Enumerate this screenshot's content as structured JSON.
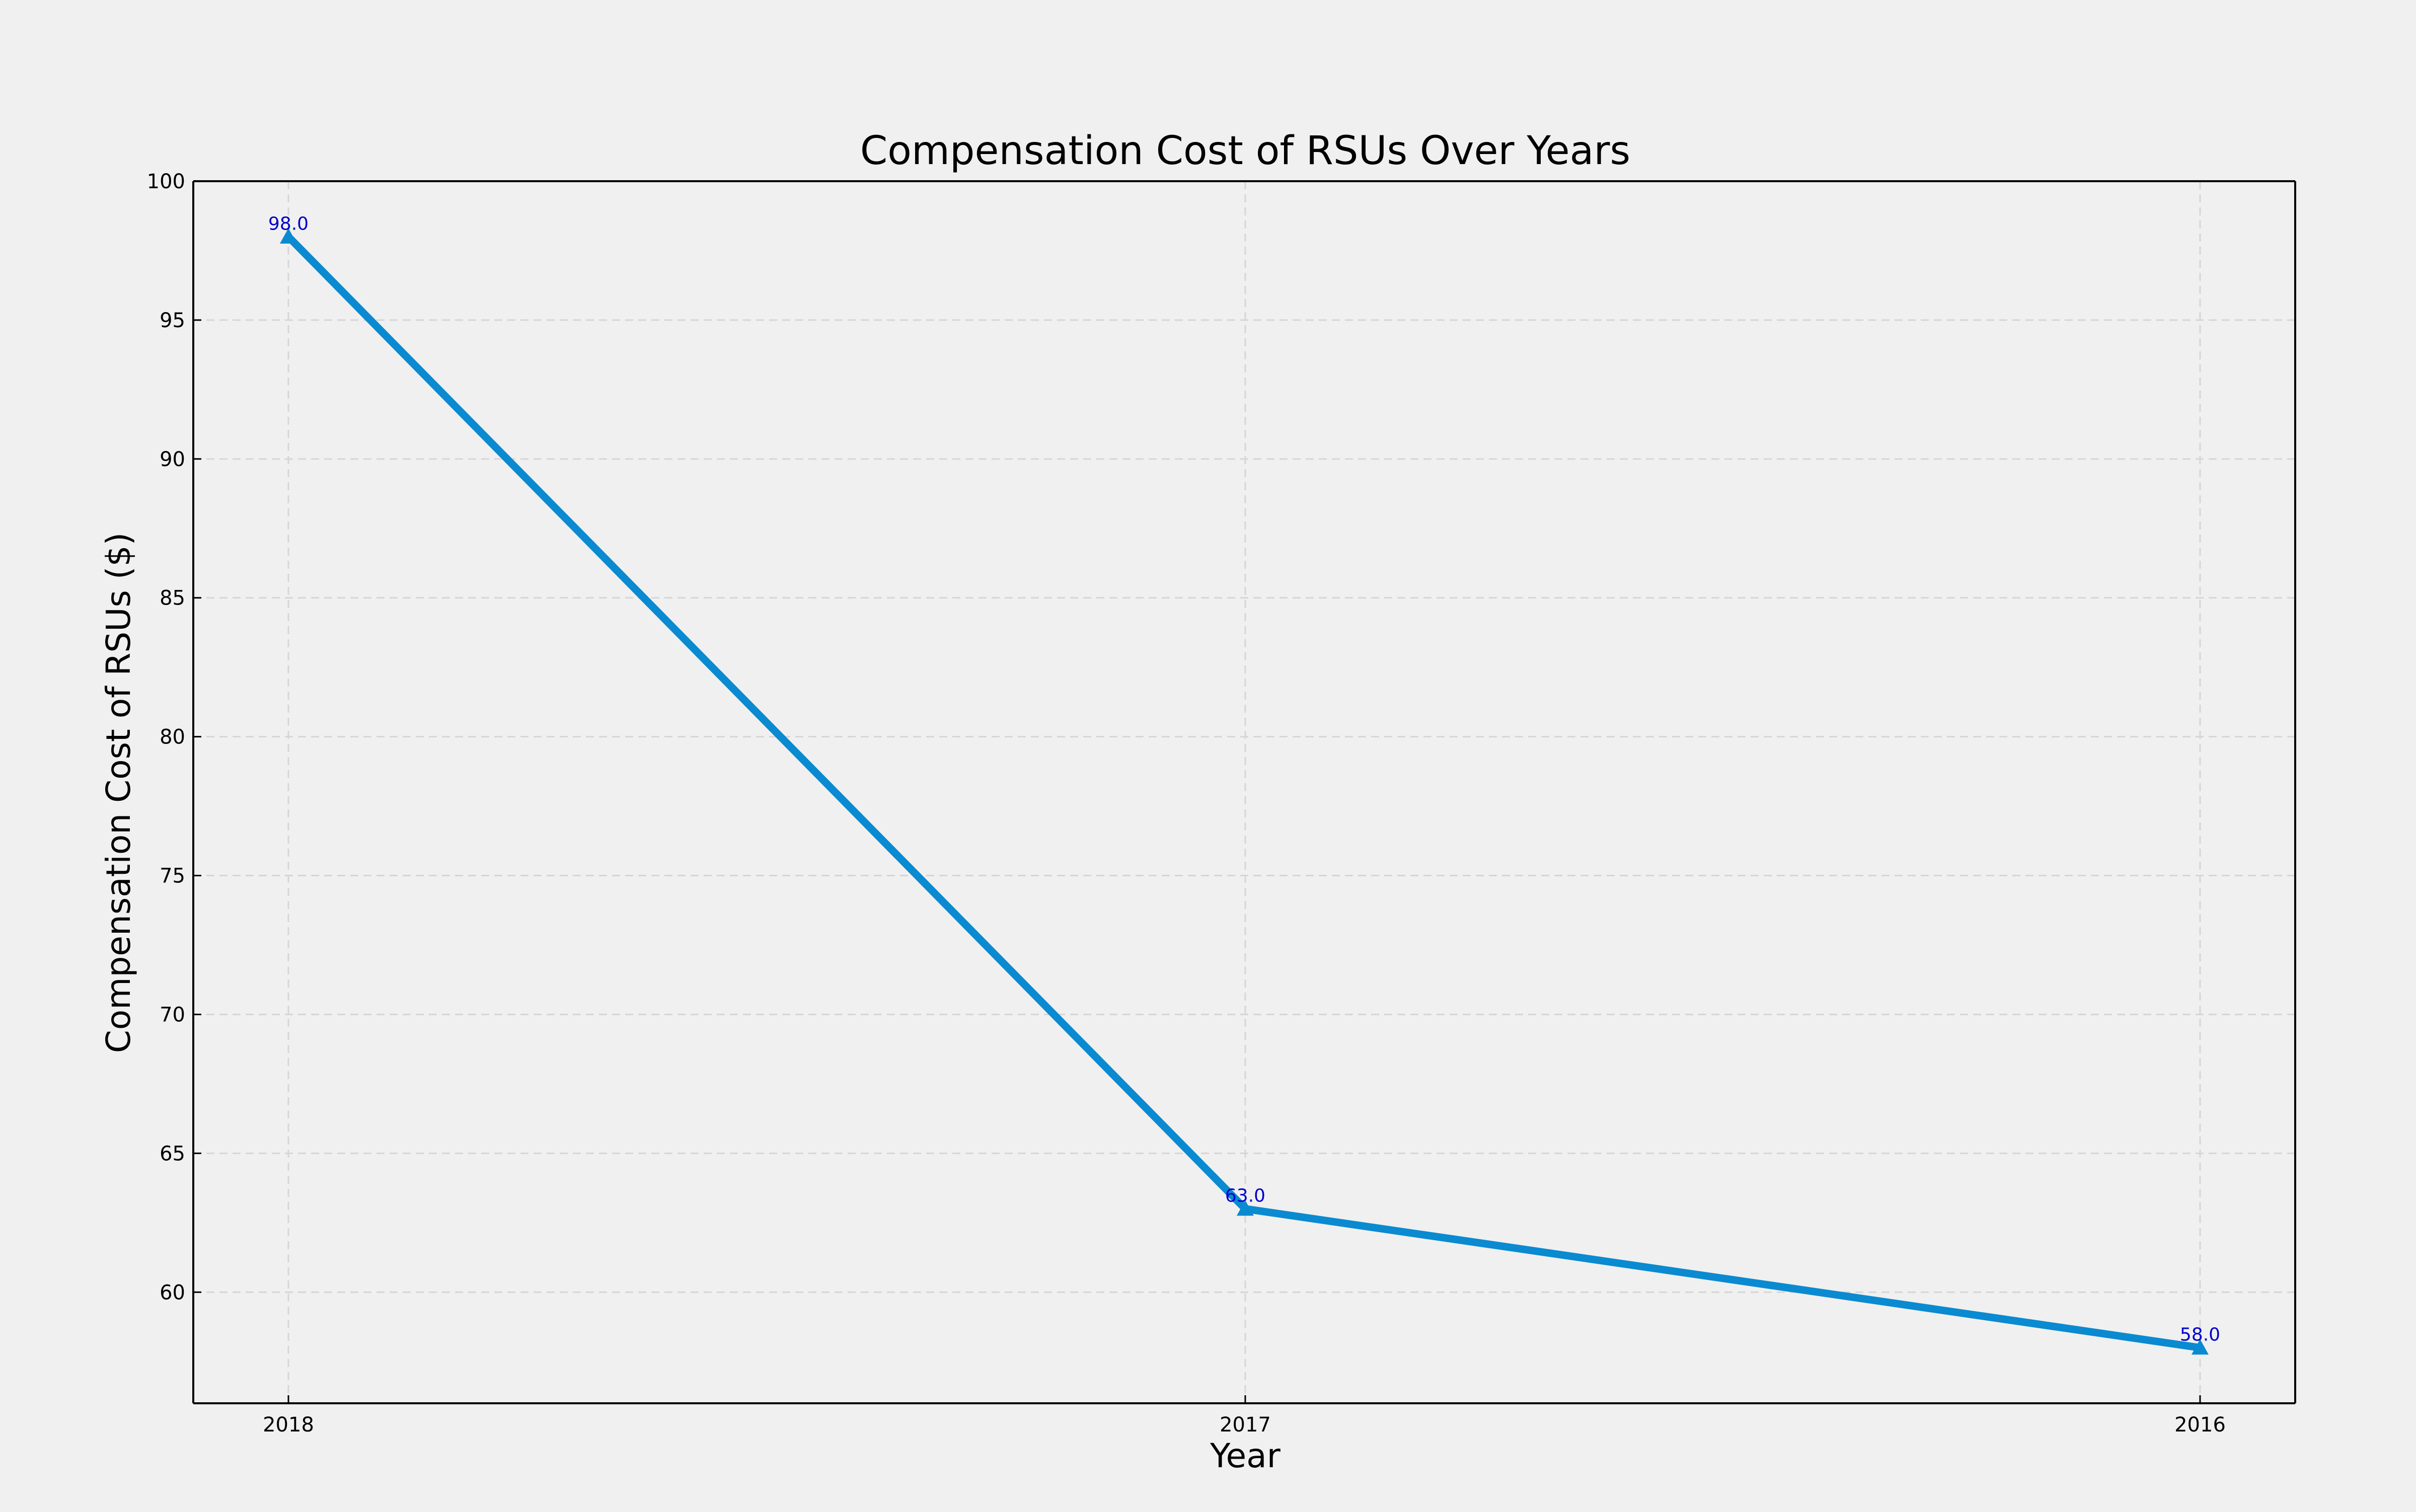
{
  "chart_data": {
    "type": "line",
    "title": "Compensation Cost of RSUs Over Years",
    "xlabel": "Year",
    "ylabel": "Compensation Cost of RSUs ($)",
    "categories": [
      "2018",
      "2017",
      "2016"
    ],
    "values": [
      98.0,
      63.0,
      58.0
    ],
    "data_labels": [
      "98.0",
      "63.0",
      "58.0"
    ],
    "ylim": [
      56,
      100
    ],
    "yticks": [
      60,
      65,
      70,
      75,
      80,
      85,
      90,
      95,
      100
    ],
    "grid": true,
    "marker": "triangle-up",
    "legend": "none"
  },
  "colors": {
    "line": "#0a8ad0",
    "data_label": "#0000cc",
    "grid": "#d6d6d6",
    "axis": "#000000",
    "background": "#f0f0f0"
  }
}
